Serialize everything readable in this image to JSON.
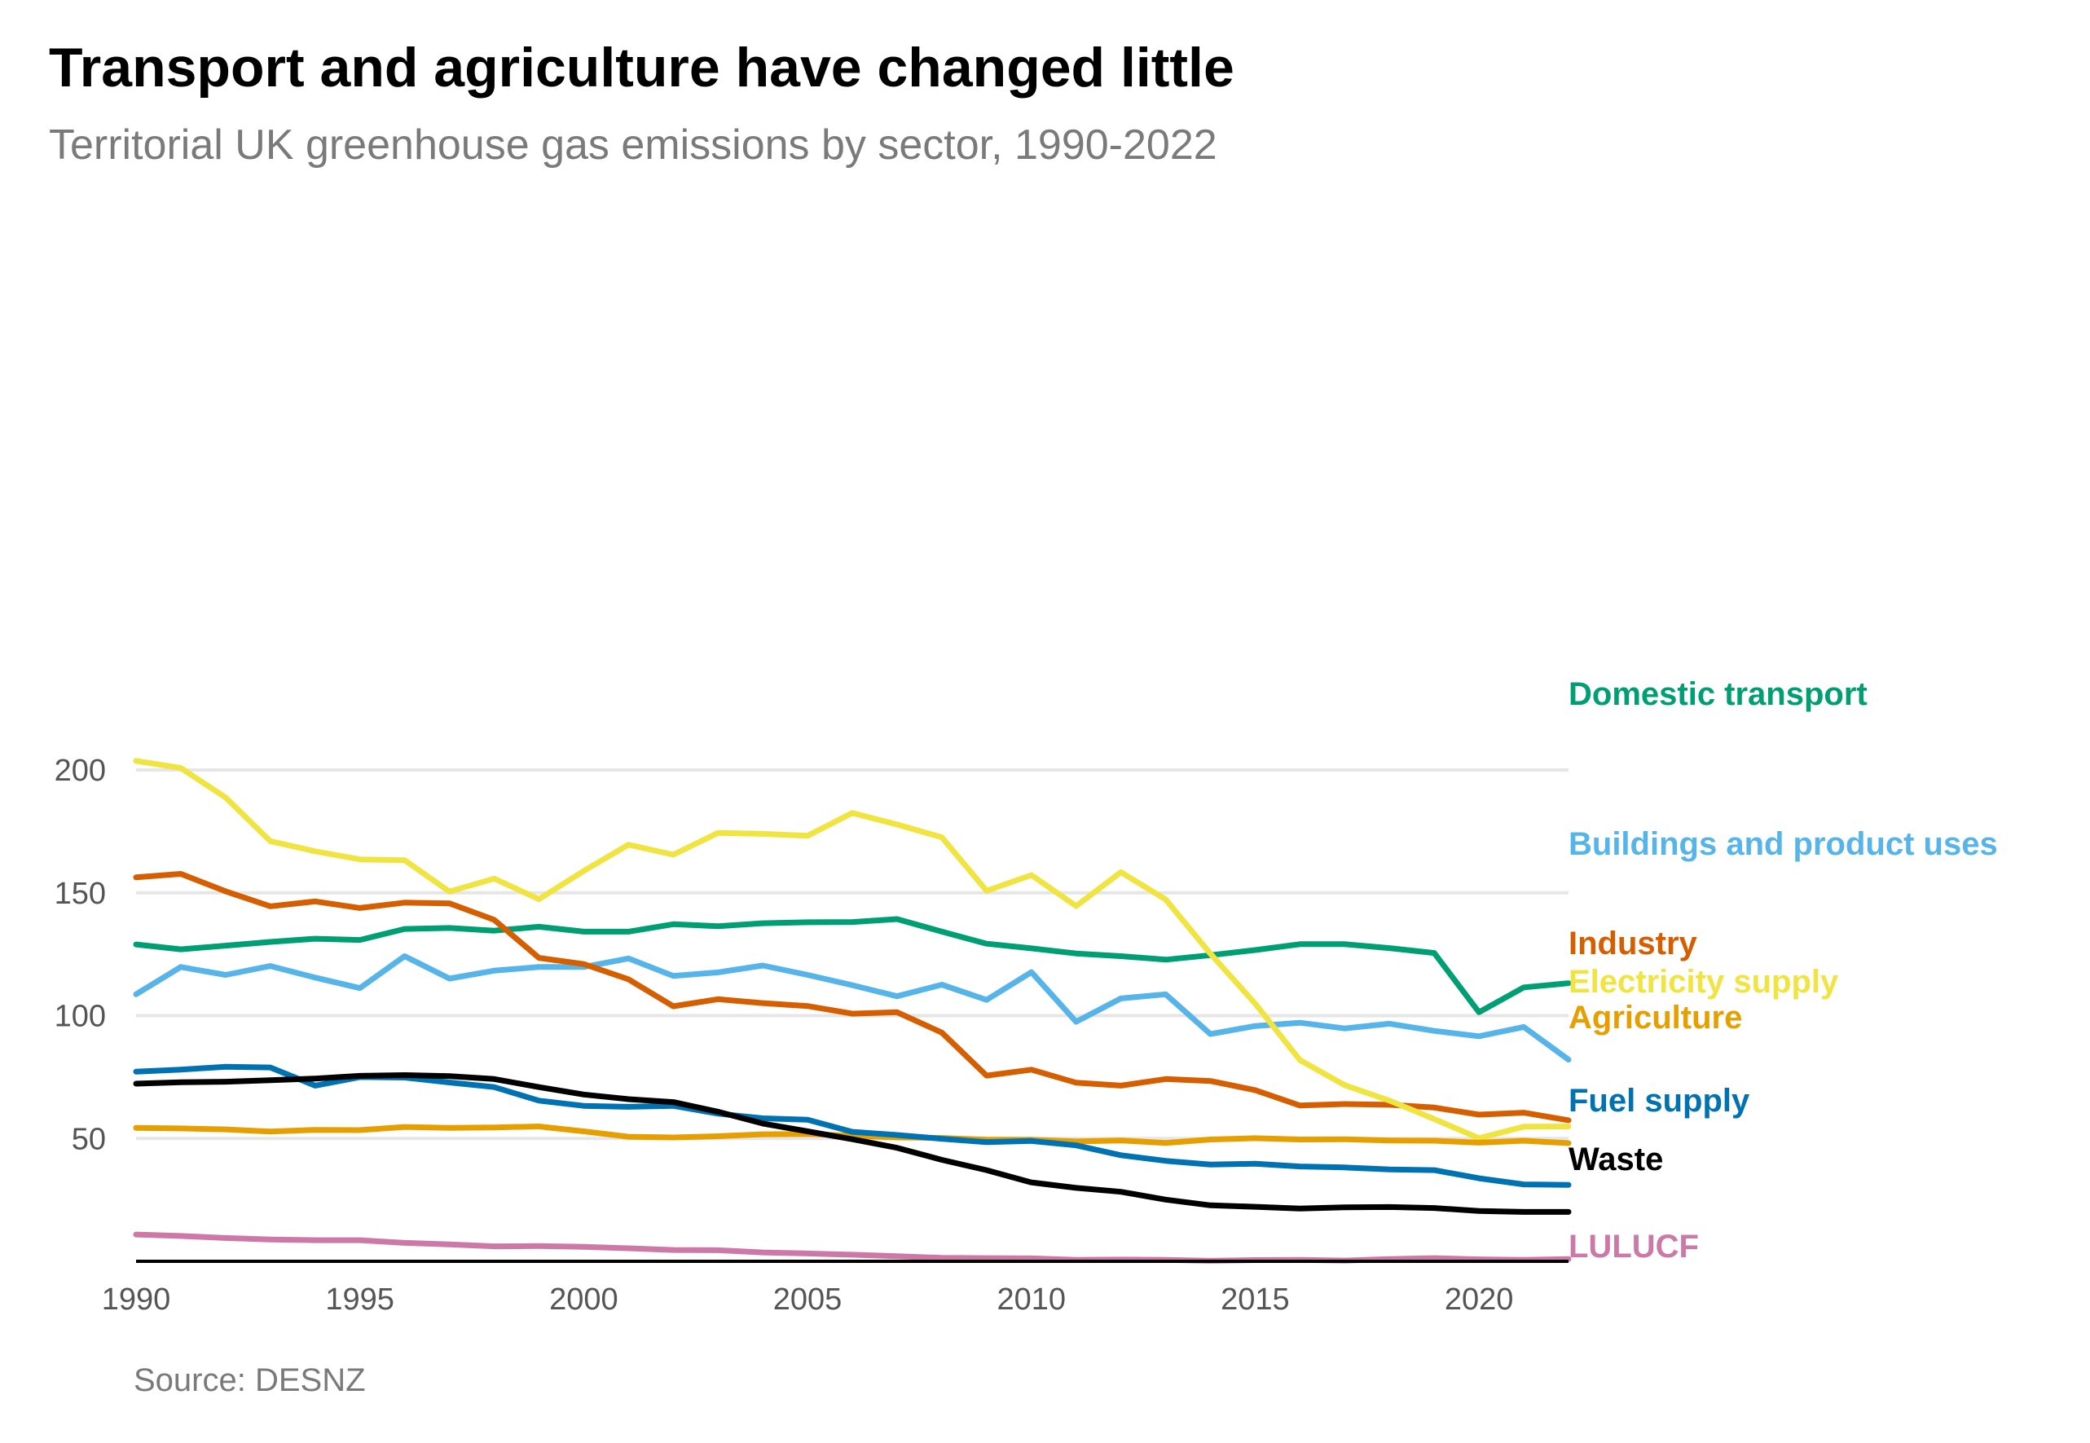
{
  "title": "Transport and agriculture have changed little",
  "subtitle": "Territorial UK greenhouse gas emissions by sector, 1990-2022",
  "source": "Source: DESNZ",
  "chart_data": {
    "type": "line",
    "title": "Transport and agriculture have changed little",
    "subtitle": "Territorial UK greenhouse gas emissions by sector, 1990-2022",
    "xlabel": "",
    "ylabel": "",
    "xlim": [
      1990,
      2022
    ],
    "ylim": [
      0,
      205
    ],
    "grid": true,
    "legend": "direct labels at line ends",
    "x": [
      1990,
      1991,
      1992,
      1993,
      1994,
      1995,
      1996,
      1997,
      1998,
      1999,
      2000,
      2001,
      2002,
      2003,
      2004,
      2005,
      2006,
      2007,
      2008,
      2009,
      2010,
      2011,
      2012,
      2013,
      2014,
      2015,
      2016,
      2017,
      2018,
      2019,
      2020,
      2021,
      2022
    ],
    "x_ticks": [
      1990,
      1995,
      2000,
      2005,
      2010,
      2015,
      2020
    ],
    "y_ticks": [
      50,
      100,
      150,
      200
    ],
    "series": [
      {
        "name": "Domestic transport",
        "color": "#009E73",
        "values": [
          129,
          127,
          128.5,
          130,
          131.3,
          130.8,
          135.3,
          135.7,
          134.6,
          136.2,
          134.2,
          134.2,
          137.2,
          136.4,
          137.6,
          138,
          138.1,
          139.3,
          134.2,
          129.3,
          127.4,
          125.3,
          124.2,
          122.8,
          124.6,
          126.7,
          129.1,
          129.1,
          127.5,
          125.5,
          101.4,
          111.5,
          113.2
        ]
      },
      {
        "name": "Buildings and product uses",
        "color": "#56B4E9",
        "values": [
          108.7,
          119.8,
          116.6,
          120.2,
          115.5,
          111.2,
          124.2,
          115.1,
          118.3,
          119.8,
          119.8,
          123.3,
          116.2,
          117.6,
          120.4,
          116.6,
          112.4,
          107.9,
          112.6,
          106.4,
          117.7,
          97.5,
          107,
          108.7,
          92.5,
          95.8,
          97.1,
          94.8,
          96.7,
          93.8,
          91.6,
          95.4,
          82.1
        ]
      },
      {
        "name": "Industry",
        "color": "#D55E00",
        "values": [
          156.3,
          157.7,
          150.6,
          144.5,
          146.5,
          143.8,
          146,
          145.7,
          139,
          123.5,
          121,
          114.8,
          103.8,
          106.7,
          105.1,
          103.9,
          100.8,
          101.4,
          93.1,
          75.6,
          78,
          72.7,
          71.5,
          74.2,
          73.4,
          69.7,
          63.4,
          64,
          63.7,
          62.6,
          59.7,
          60.5,
          57.4
        ]
      },
      {
        "name": "Electricity supply",
        "color": "#F0E442",
        "values": [
          203.7,
          200.8,
          188.8,
          171,
          166.9,
          163.6,
          163.3,
          150.5,
          155.8,
          147.4,
          158.9,
          169.6,
          165.5,
          174.4,
          174,
          173.2,
          182.5,
          177.8,
          172.6,
          150.8,
          157.2,
          144.6,
          158.4,
          147.3,
          125.2,
          104.9,
          81.9,
          71.7,
          65.4,
          57.9,
          50.1,
          54.8,
          54.9
        ]
      },
      {
        "name": "Agriculture",
        "color": "#E69F00",
        "values": [
          54.3,
          54.1,
          53.7,
          52.8,
          53.5,
          53.4,
          54.7,
          54.3,
          54.5,
          54.9,
          52.9,
          50.7,
          50.4,
          50.9,
          51.7,
          51.8,
          51.1,
          50.4,
          50.2,
          49.5,
          49.5,
          48.8,
          49.2,
          48.2,
          49.6,
          50.1,
          49.6,
          49.7,
          49.2,
          49.1,
          48.3,
          49.1,
          48.1
        ]
      },
      {
        "name": "Fuel supply",
        "color": "#0072B2",
        "values": [
          77.2,
          78,
          79.2,
          78.9,
          71.5,
          75,
          74.8,
          72.8,
          70.9,
          65.4,
          63.3,
          62.9,
          63.3,
          60.1,
          58.2,
          57.6,
          52.7,
          51.4,
          49.9,
          48.5,
          49,
          47.2,
          43.2,
          40.9,
          39.4,
          39.7,
          38.6,
          38.2,
          37.4,
          37.1,
          33.8,
          31.3,
          31.1
        ]
      },
      {
        "name": "Waste",
        "color": "#000000",
        "values": [
          72.3,
          72.9,
          73.1,
          73.7,
          74.4,
          75.5,
          75.8,
          75.4,
          74.2,
          70.9,
          67.9,
          66,
          64.8,
          60.9,
          56.1,
          52.9,
          49.7,
          46.2,
          41.3,
          37.1,
          32.1,
          29.9,
          28.3,
          25.1,
          22.8,
          22.2,
          21.5,
          22,
          22.1,
          21.7,
          20.5,
          20.1,
          20.1
        ]
      },
      {
        "name": "LULUCF",
        "color": "#CC79A7",
        "values": [
          10.9,
          10.3,
          9.5,
          8.9,
          8.6,
          8.6,
          7.5,
          6.9,
          6.1,
          6.2,
          5.9,
          5.3,
          4.6,
          4.5,
          3.6,
          3.2,
          2.7,
          2.1,
          1.4,
          1.3,
          1.2,
          0.6,
          0.7,
          0.6,
          0.2,
          0.5,
          0.6,
          0.3,
          0.9,
          1.3,
          0.8,
          0.6,
          0.9
        ]
      }
    ]
  }
}
